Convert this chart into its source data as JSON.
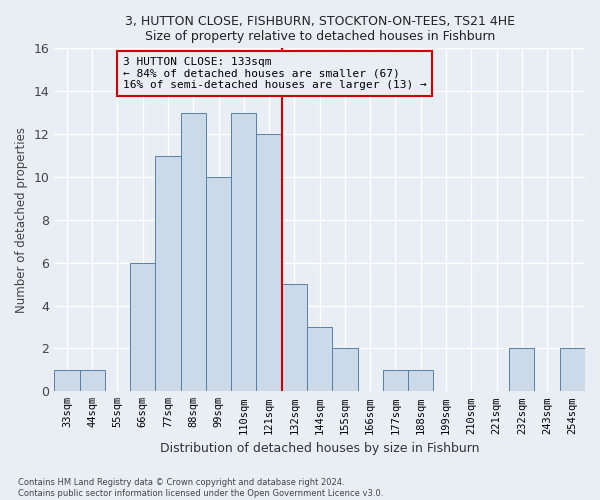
{
  "title": "3, HUTTON CLOSE, FISHBURN, STOCKTON-ON-TEES, TS21 4HE",
  "subtitle": "Size of property relative to detached houses in Fishburn",
  "xlabel": "Distribution of detached houses by size in Fishburn",
  "ylabel": "Number of detached properties",
  "bar_labels": [
    "33sqm",
    "44sqm",
    "55sqm",
    "66sqm",
    "77sqm",
    "88sqm",
    "99sqm",
    "110sqm",
    "121sqm",
    "132sqm",
    "144sqm",
    "155sqm",
    "166sqm",
    "177sqm",
    "188sqm",
    "199sqm",
    "210sqm",
    "221sqm",
    "232sqm",
    "243sqm",
    "254sqm"
  ],
  "bar_values": [
    1,
    1,
    0,
    6,
    11,
    13,
    10,
    13,
    12,
    5,
    3,
    2,
    0,
    1,
    1,
    0,
    0,
    0,
    2,
    0,
    2
  ],
  "bar_color": "#ccd9e8",
  "bar_edge_color": "#5580aa",
  "ylim": [
    0,
    16
  ],
  "yticks": [
    0,
    2,
    4,
    6,
    8,
    10,
    12,
    14,
    16
  ],
  "vline_x": 8.5,
  "vline_color": "#cc0000",
  "annotation_text": "3 HUTTON CLOSE: 133sqm\n← 84% of detached houses are smaller (67)\n16% of semi-detached houses are larger (13) →",
  "annotation_box_color": "#cc0000",
  "footer_line1": "Contains HM Land Registry data © Crown copyright and database right 2024.",
  "footer_line2": "Contains public sector information licensed under the Open Government Licence v3.0.",
  "bg_color": "#e8eef4",
  "grid_color": "#ffffff"
}
